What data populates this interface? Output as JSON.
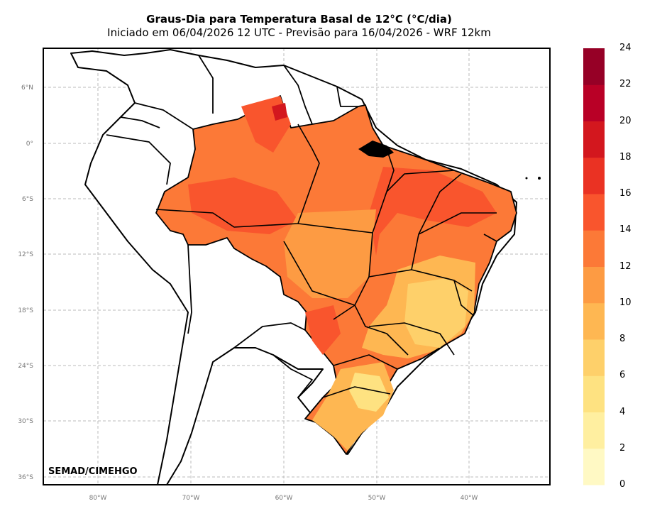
{
  "title": "Graus-Dia para Temperatura Basal de 12°C (°C/dia)",
  "subtitle": "Iniciado em 06/04/2026 12 UTC - Previsão para 16/04/2026 - WRF 12km",
  "credit": "SEMAD/CIMEHGO",
  "lat_labels": [
    "6°N",
    "0°",
    "6°S",
    "12°S",
    "18°S",
    "24°S",
    "30°S",
    "36°S"
  ],
  "lon_labels": [
    "80°W",
    "70°W",
    "60°W",
    "50°W",
    "40°W"
  ],
  "colorbar": {
    "ticks": [
      "0",
      "2",
      "4",
      "6",
      "8",
      "10",
      "12",
      "14",
      "16",
      "18",
      "20",
      "22",
      "24"
    ],
    "colors": [
      "#fff9c4",
      "#ffefa0",
      "#fee281",
      "#fed06a",
      "#feb752",
      "#fd9b43",
      "#fc7937",
      "#f9552d",
      "#ea3223",
      "#d3171e",
      "#b90026",
      "#960026"
    ]
  }
}
